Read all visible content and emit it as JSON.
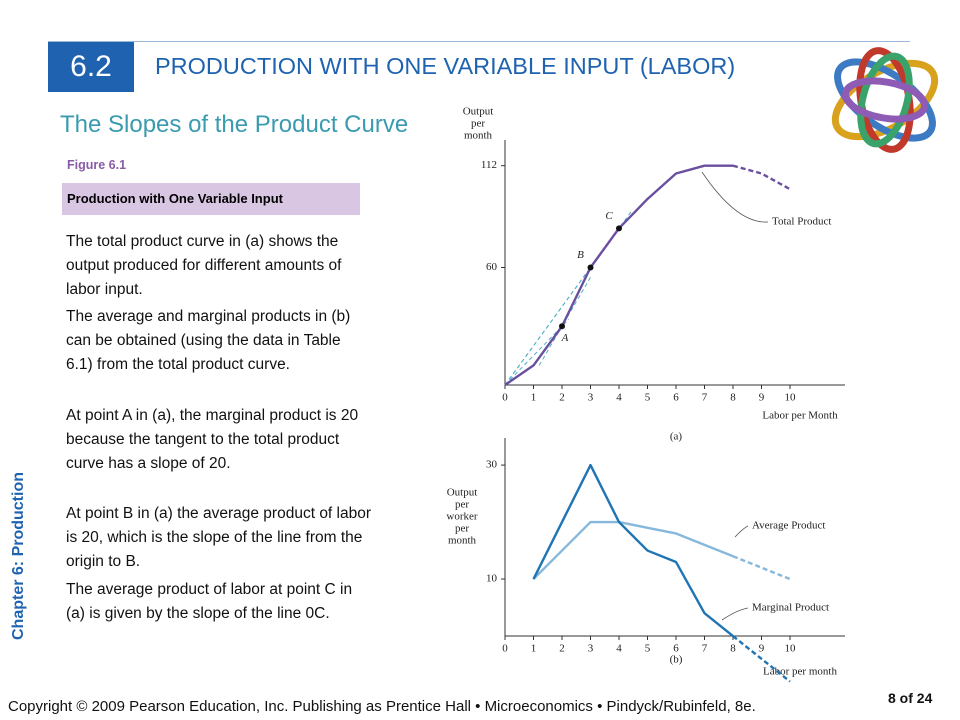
{
  "header": {
    "section": "6.2",
    "title": "PRODUCTION WITH ONE VARIABLE INPUT (LABOR)",
    "subtitle": "The Slopes of the Product Curve"
  },
  "figure": {
    "label": "Figure 6.1",
    "caption": "Production with One Variable Input"
  },
  "paragraphs": [
    "The total product curve in (a) shows the output produced for different amounts of labor input.",
    "The average and marginal products in (b) can be obtained (using the data in Table 6.1) from the total product curve.",
    "At point A in (a), the marginal product is 20 because the tangent to the total product curve has a slope of 20.",
    "At point B in (a) the average product of labor is 20, which is the slope of the line from the origin to B.",
    " The average product of labor at point C in (a) is given by the slope of the line 0C."
  ],
  "sidebar": "Chapter 6: Production",
  "footer": {
    "copyright": "Copyright © 2009 Pearson Education, Inc. Publishing as Prentice Hall • Microeconomics • Pindyck/Rubinfeld, 8e.",
    "page": "8 of 24"
  },
  "chart_data": [
    {
      "type": "line",
      "panel_label": "(a)",
      "x_label": "Labor per Month",
      "y_label": [
        "Output",
        "per",
        "month"
      ],
      "x": [
        0,
        1,
        2,
        3,
        4,
        5,
        6,
        7,
        8,
        9,
        10
      ],
      "xlim": [
        0,
        10
      ],
      "xticks": [
        0,
        1,
        2,
        3,
        4,
        5,
        6,
        7,
        8,
        9,
        10
      ],
      "ylim": [
        0,
        120
      ],
      "yticks": [
        60,
        112
      ],
      "dashed_from": 8,
      "series": [
        {
          "name": "Total Product",
          "color": "#6a4fa0",
          "values": [
            0,
            10,
            30,
            60,
            80,
            95,
            108,
            112,
            112,
            108,
            100
          ]
        }
      ],
      "annotations": [
        {
          "text": "A",
          "x": 2
        },
        {
          "text": "B",
          "x": 3
        },
        {
          "text": "C",
          "x": 4
        }
      ]
    },
    {
      "type": "line",
      "panel_label": "(b)",
      "x_label": "Labor per month",
      "y_label": [
        "Output",
        "per",
        "worker",
        "per",
        "month"
      ],
      "x": [
        0,
        1,
        2,
        3,
        4,
        5,
        6,
        7,
        8,
        9,
        10
      ],
      "xlim": [
        0,
        10
      ],
      "xticks": [
        0,
        1,
        2,
        3,
        4,
        5,
        6,
        7,
        8,
        9,
        10
      ],
      "ylim": [
        -8,
        33
      ],
      "yticks": [
        10,
        30
      ],
      "dashed_from": 8,
      "series": [
        {
          "name": "Average Product",
          "color": "#86b8dc",
          "values": [
            null,
            10,
            15,
            20,
            20,
            19,
            18,
            16,
            14,
            12,
            10
          ]
        },
        {
          "name": "Marginal Product",
          "color": "#1f74b4",
          "values": [
            null,
            10,
            20,
            30,
            20,
            15,
            13,
            4,
            0,
            -4,
            -8
          ]
        }
      ]
    }
  ]
}
